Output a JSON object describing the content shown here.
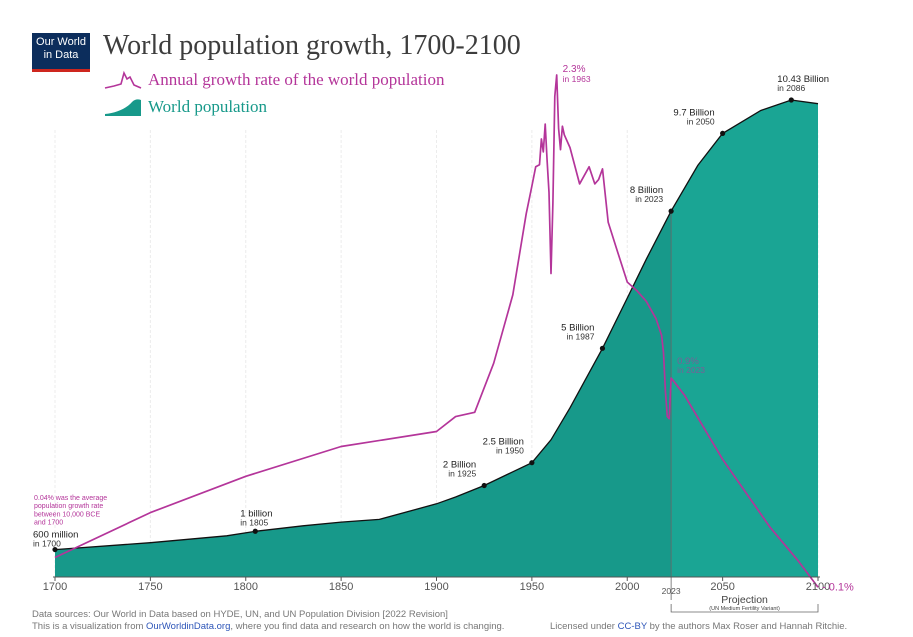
{
  "header": {
    "logo_line1": "Our World",
    "logo_line2": "in Data",
    "title": "World population growth, 1700-2100"
  },
  "legend": {
    "rate_label": "Annual growth rate of the world population",
    "pop_label": "World population"
  },
  "colors": {
    "population_fill": "#17998a",
    "population_fill_projection": "#1aa594",
    "rate_line": "#b4359a"
  },
  "footer": {
    "sources": "Data sources: Our World in Data based on HYDE, UN, and UN Population Division [2022 Revision]",
    "vis_prefix": "This is a visualization from ",
    "vis_link": "OurWorldinData.org",
    "vis_suffix": ", where you find data and research on how the world is changing.",
    "license_prefix": "Licensed under ",
    "license_link": "CC-BY",
    "license_suffix": " by the authors Max Roser and Hannah Ritchie."
  },
  "chart_data": {
    "type": "area",
    "title": "World population growth, 1700-2100",
    "xlim": [
      1700,
      2100
    ],
    "x_ticks": [
      "1700",
      "1750",
      "1800",
      "1850",
      "1900",
      "1950",
      "2000",
      "2050",
      "2100"
    ],
    "projection_start": 2023,
    "projection_label": "Projection",
    "projection_sublabel": "(UN Medium Fertility Variant)",
    "projection_year_label": "2023",
    "series": [
      {
        "name": "World population",
        "unit": "billion",
        "points": [
          [
            1700,
            0.6
          ],
          [
            1750,
            0.75
          ],
          [
            1790,
            0.9
          ],
          [
            1805,
            1.0
          ],
          [
            1830,
            1.12
          ],
          [
            1850,
            1.2
          ],
          [
            1870,
            1.26
          ],
          [
            1900,
            1.6
          ],
          [
            1910,
            1.75
          ],
          [
            1925,
            2.0
          ],
          [
            1940,
            2.3
          ],
          [
            1950,
            2.5
          ],
          [
            1960,
            3.0
          ],
          [
            1970,
            3.7
          ],
          [
            1987,
            5.0
          ],
          [
            2000,
            6.1
          ],
          [
            2010,
            6.95
          ],
          [
            2023,
            8.0
          ],
          [
            2037,
            9.0
          ],
          [
            2050,
            9.7
          ],
          [
            2070,
            10.2
          ],
          [
            2086,
            10.43
          ],
          [
            2100,
            10.35
          ]
        ]
      },
      {
        "name": "Annual growth rate of the world population",
        "unit": "%",
        "points": [
          [
            1700,
            0.04
          ],
          [
            1750,
            0.25
          ],
          [
            1800,
            0.42
          ],
          [
            1850,
            0.56
          ],
          [
            1900,
            0.63
          ],
          [
            1910,
            0.7
          ],
          [
            1920,
            0.72
          ],
          [
            1930,
            0.95
          ],
          [
            1940,
            1.27
          ],
          [
            1947,
            1.65
          ],
          [
            1950,
            1.78
          ],
          [
            1952,
            1.87
          ],
          [
            1954,
            1.88
          ],
          [
            1955,
            2.0
          ],
          [
            1956,
            1.94
          ],
          [
            1957,
            2.07
          ],
          [
            1958,
            1.9
          ],
          [
            1959,
            1.75
          ],
          [
            1960,
            1.37
          ],
          [
            1961,
            1.7
          ],
          [
            1962,
            2.2
          ],
          [
            1963,
            2.3
          ],
          [
            1964,
            2.05
          ],
          [
            1965,
            1.95
          ],
          [
            1966,
            2.06
          ],
          [
            1967,
            2.02
          ],
          [
            1970,
            1.96
          ],
          [
            1975,
            1.79
          ],
          [
            1980,
            1.87
          ],
          [
            1983,
            1.79
          ],
          [
            1985,
            1.81
          ],
          [
            1987,
            1.86
          ],
          [
            1990,
            1.61
          ],
          [
            1995,
            1.47
          ],
          [
            2000,
            1.33
          ],
          [
            2005,
            1.29
          ],
          [
            2010,
            1.24
          ],
          [
            2015,
            1.16
          ],
          [
            2018,
            1.08
          ],
          [
            2019,
            1.0
          ],
          [
            2020,
            0.82
          ],
          [
            2021,
            0.7
          ],
          [
            2022,
            0.69
          ],
          [
            2023,
            0.88
          ],
          [
            2024,
            0.87
          ],
          [
            2030,
            0.8
          ],
          [
            2050,
            0.5
          ],
          [
            2075,
            0.18
          ],
          [
            2090,
            0.02
          ],
          [
            2100,
            -0.1
          ]
        ]
      }
    ],
    "population_annotations": [
      {
        "x": 1700,
        "y": 0.6,
        "value": "600 million",
        "year": "in 1700"
      },
      {
        "x": 1805,
        "y": 1.0,
        "value": "1 billion",
        "year": "in 1805"
      },
      {
        "x": 1925,
        "y": 2.0,
        "value": "2 Billion",
        "year": "in 1925"
      },
      {
        "x": 1950,
        "y": 2.5,
        "value": "2.5 Billion",
        "year": "in 1950"
      },
      {
        "x": 1987,
        "y": 5.0,
        "value": "5 Billion",
        "year": "in 1987"
      },
      {
        "x": 2023,
        "y": 8.0,
        "value": "8 Billion",
        "year": "in 2023"
      },
      {
        "x": 2050,
        "y": 9.7,
        "value": "9.7 Billion",
        "year": "in 2050"
      },
      {
        "x": 2086,
        "y": 10.43,
        "value": "10.43 Billion",
        "year": "in 2086"
      }
    ],
    "rate_annotations": [
      {
        "x": 1963,
        "y": 2.3,
        "value": "2.3%",
        "year": "in 1963"
      },
      {
        "x": 2023,
        "y": 0.88,
        "value": "0.9%",
        "year": "in 2023"
      },
      {
        "x": 2100,
        "y": -0.1,
        "value": "- 0.1%"
      }
    ],
    "rate_note": [
      "0.04% was the average",
      "population growth rate",
      "between 10,000 BCE",
      "and 1700"
    ]
  }
}
